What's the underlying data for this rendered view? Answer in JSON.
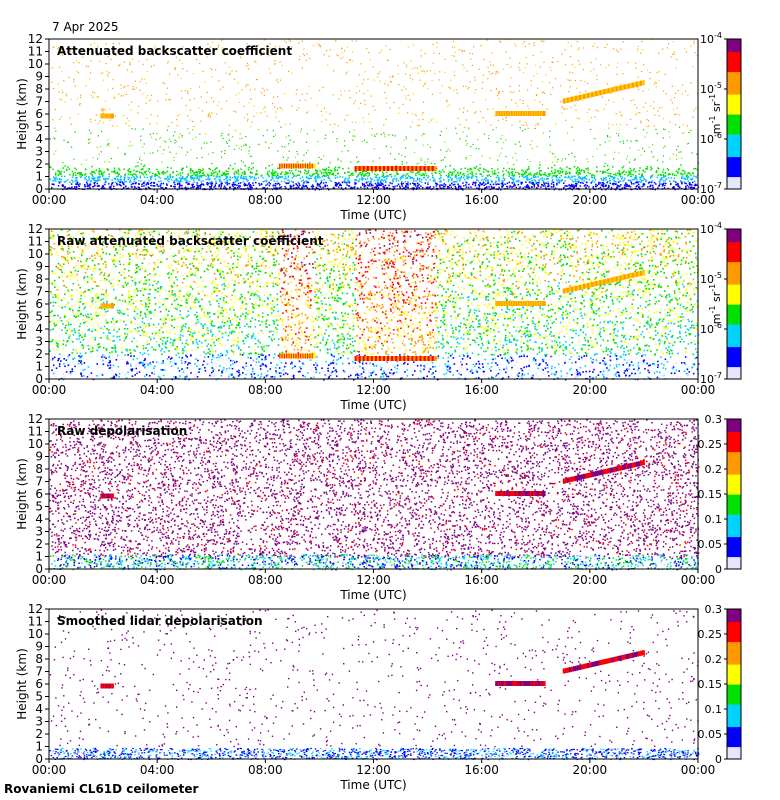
{
  "date_label": "7 Apr 2025",
  "footer_label": "Rovaniemi CL61D ceilometer",
  "chart_data": [
    {
      "type": "heatmap",
      "title": "Attenuated backscatter coefficient",
      "xlabel": "Time (UTC)",
      "ylabel": "Height (km)",
      "x_ticks": [
        "00:00",
        "04:00",
        "08:00",
        "12:00",
        "16:00",
        "20:00",
        "00:00"
      ],
      "y_ticks": [
        "0",
        "1",
        "2",
        "3",
        "4",
        "5",
        "6",
        "7",
        "8",
        "9",
        "10",
        "11",
        "12"
      ],
      "ylim": [
        0,
        12
      ],
      "colorbar": {
        "scale": "log",
        "ticks": [
          "10",
          "10",
          "10",
          "10"
        ],
        "exponents": [
          "-7",
          "-6",
          "-5",
          "-4"
        ],
        "label_base": "m",
        "label_exp1": "-1",
        "label_mid": " sr",
        "label_exp2": "-1"
      },
      "features": [
        {
          "name": "boundary layer",
          "t_start_h": 0,
          "t_end_h": 24,
          "h_top_km": 1.0
        },
        {
          "name": "cloud",
          "t_start_h": 8.5,
          "t_end_h": 9.8,
          "h_km": 1.8
        },
        {
          "name": "cloud",
          "t_start_h": 11.3,
          "t_end_h": 14.3,
          "h_km": 1.6
        },
        {
          "name": "cloud",
          "t_start_h": 1.9,
          "t_end_h": 2.3,
          "h_km": 5.8
        },
        {
          "name": "cloud",
          "t_start_h": 16.5,
          "t_end_h": 18.3,
          "h_km": 6.0
        },
        {
          "name": "cloud",
          "t_start_h": 19.0,
          "t_end_h": 22.0,
          "h_km": 7.0
        }
      ]
    },
    {
      "type": "heatmap",
      "title": "Raw attenuated backscatter coefficient",
      "xlabel": "Time (UTC)",
      "ylabel": "Height (km)",
      "x_ticks": [
        "00:00",
        "04:00",
        "08:00",
        "12:00",
        "16:00",
        "20:00",
        "00:00"
      ],
      "y_ticks": [
        "0",
        "1",
        "2",
        "3",
        "4",
        "5",
        "6",
        "7",
        "8",
        "9",
        "10",
        "11",
        "12"
      ],
      "ylim": [
        0,
        12
      ],
      "colorbar": {
        "scale": "log",
        "ticks": [
          "10",
          "10",
          "10",
          "10"
        ],
        "exponents": [
          "-7",
          "-6",
          "-5",
          "-4"
        ],
        "label_base": "m",
        "label_exp1": "-1",
        "label_mid": " sr",
        "label_exp2": "-1"
      }
    },
    {
      "type": "heatmap",
      "title": "Raw depolarisation",
      "xlabel": "Time (UTC)",
      "ylabel": "Height (km)",
      "x_ticks": [
        "00:00",
        "04:00",
        "08:00",
        "12:00",
        "16:00",
        "20:00",
        "00:00"
      ],
      "y_ticks": [
        "0",
        "1",
        "2",
        "3",
        "4",
        "5",
        "6",
        "7",
        "8",
        "9",
        "10",
        "11",
        "12"
      ],
      "ylim": [
        0,
        12
      ],
      "colorbar": {
        "scale": "linear",
        "range": [
          0,
          0.3
        ],
        "ticks": [
          "0",
          "0.05",
          "0.1",
          "0.15",
          "0.2",
          "0.25",
          "0.3"
        ]
      }
    },
    {
      "type": "heatmap",
      "title": "Smoothed lidar depolarisation",
      "xlabel": "Time (UTC)",
      "ylabel": "Height (km)",
      "x_ticks": [
        "00:00",
        "04:00",
        "08:00",
        "12:00",
        "16:00",
        "20:00",
        "00:00"
      ],
      "y_ticks": [
        "0",
        "1",
        "2",
        "3",
        "4",
        "5",
        "6",
        "7",
        "8",
        "9",
        "10",
        "11",
        "12"
      ],
      "ylim": [
        0,
        12
      ],
      "colorbar": {
        "scale": "linear",
        "range": [
          0,
          0.3
        ],
        "ticks": [
          "0",
          "0.05",
          "0.1",
          "0.15",
          "0.2",
          "0.25",
          "0.3"
        ]
      }
    }
  ]
}
